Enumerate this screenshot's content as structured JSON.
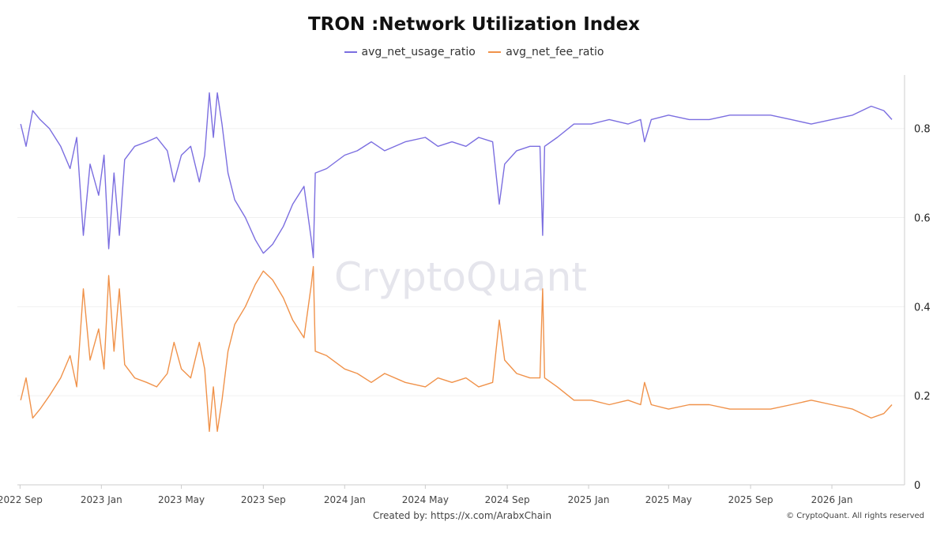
{
  "chart_data": {
    "type": "line",
    "title": "TRON :Network Utilization Index",
    "xlabel": "",
    "ylabel": "",
    "ylim": [
      0,
      0.92
    ],
    "grid": true,
    "legend": "top-center",
    "xlim": [
      "2022-08-28",
      "2026-04-20"
    ],
    "x_tick_labels": [
      {
        "date": "2022-09-01",
        "label": "2022 Sep"
      },
      {
        "date": "2023-01-01",
        "label": "2023 Jan"
      },
      {
        "date": "2023-05-01",
        "label": "2023 May"
      },
      {
        "date": "2023-09-01",
        "label": "2023 Sep"
      },
      {
        "date": "2024-01-01",
        "label": "2024 Jan"
      },
      {
        "date": "2024-05-01",
        "label": "2024 May"
      },
      {
        "date": "2024-09-01",
        "label": "2024 Sep"
      },
      {
        "date": "2025-01-01",
        "label": "2025 Jan"
      },
      {
        "date": "2025-05-01",
        "label": "2025 May"
      },
      {
        "date": "2025-09-01",
        "label": "2025 Sep"
      },
      {
        "date": "2026-01-01",
        "label": "2026 Jan"
      }
    ],
    "y_ticks": [
      0,
      0.2,
      0.4,
      0.6,
      0.8
    ],
    "y_tick_labels": [
      "0",
      "0.2",
      "0.4",
      "0.6",
      "0.8"
    ],
    "series": [
      {
        "name": "avg_net_usage_ratio",
        "color": "#7b6ee0",
        "points": [
          [
            "2022-09-02",
            0.81
          ],
          [
            "2022-09-10",
            0.76
          ],
          [
            "2022-09-20",
            0.84
          ],
          [
            "2022-10-01",
            0.82
          ],
          [
            "2022-10-15",
            0.8
          ],
          [
            "2022-11-01",
            0.76
          ],
          [
            "2022-11-15",
            0.71
          ],
          [
            "2022-11-25",
            0.78
          ],
          [
            "2022-12-05",
            0.56
          ],
          [
            "2022-12-15",
            0.72
          ],
          [
            "2022-12-28",
            0.65
          ],
          [
            "2023-01-05",
            0.74
          ],
          [
            "2023-01-12",
            0.53
          ],
          [
            "2023-01-20",
            0.7
          ],
          [
            "2023-01-28",
            0.56
          ],
          [
            "2023-02-05",
            0.73
          ],
          [
            "2023-02-20",
            0.76
          ],
          [
            "2023-03-10",
            0.77
          ],
          [
            "2023-03-25",
            0.78
          ],
          [
            "2023-04-10",
            0.75
          ],
          [
            "2023-04-20",
            0.68
          ],
          [
            "2023-05-01",
            0.74
          ],
          [
            "2023-05-15",
            0.76
          ],
          [
            "2023-05-28",
            0.68
          ],
          [
            "2023-06-05",
            0.74
          ],
          [
            "2023-06-12",
            0.88
          ],
          [
            "2023-06-18",
            0.78
          ],
          [
            "2023-06-24",
            0.88
          ],
          [
            "2023-07-01",
            0.81
          ],
          [
            "2023-07-10",
            0.7
          ],
          [
            "2023-07-20",
            0.64
          ],
          [
            "2023-08-05",
            0.6
          ],
          [
            "2023-08-20",
            0.55
          ],
          [
            "2023-09-01",
            0.52
          ],
          [
            "2023-09-15",
            0.54
          ],
          [
            "2023-10-01",
            0.58
          ],
          [
            "2023-10-15",
            0.63
          ],
          [
            "2023-11-01",
            0.67
          ],
          [
            "2023-11-12",
            0.55
          ],
          [
            "2023-11-15",
            0.51
          ],
          [
            "2023-11-18",
            0.7
          ],
          [
            "2023-12-05",
            0.71
          ],
          [
            "2024-01-01",
            0.74
          ],
          [
            "2024-01-20",
            0.75
          ],
          [
            "2024-02-10",
            0.77
          ],
          [
            "2024-03-01",
            0.75
          ],
          [
            "2024-04-01",
            0.77
          ],
          [
            "2024-05-01",
            0.78
          ],
          [
            "2024-05-20",
            0.76
          ],
          [
            "2024-06-10",
            0.77
          ],
          [
            "2024-07-01",
            0.76
          ],
          [
            "2024-07-20",
            0.78
          ],
          [
            "2024-08-10",
            0.77
          ],
          [
            "2024-08-20",
            0.63
          ],
          [
            "2024-08-28",
            0.72
          ],
          [
            "2024-09-15",
            0.75
          ],
          [
            "2024-10-05",
            0.76
          ],
          [
            "2024-10-20",
            0.76
          ],
          [
            "2024-10-24",
            0.56
          ],
          [
            "2024-10-27",
            0.76
          ],
          [
            "2024-11-15",
            0.78
          ],
          [
            "2024-12-10",
            0.81
          ],
          [
            "2025-01-05",
            0.81
          ],
          [
            "2025-02-01",
            0.82
          ],
          [
            "2025-03-01",
            0.81
          ],
          [
            "2025-03-20",
            0.82
          ],
          [
            "2025-03-26",
            0.77
          ],
          [
            "2025-04-05",
            0.82
          ],
          [
            "2025-05-01",
            0.83
          ],
          [
            "2025-06-01",
            0.82
          ],
          [
            "2025-07-01",
            0.82
          ],
          [
            "2025-08-01",
            0.83
          ],
          [
            "2025-09-01",
            0.83
          ],
          [
            "2025-10-01",
            0.83
          ],
          [
            "2025-11-01",
            0.82
          ],
          [
            "2025-12-01",
            0.81
          ],
          [
            "2026-01-01",
            0.82
          ],
          [
            "2026-02-01",
            0.83
          ],
          [
            "2026-03-01",
            0.85
          ],
          [
            "2026-03-20",
            0.84
          ],
          [
            "2026-04-01",
            0.82
          ]
        ]
      },
      {
        "name": "avg_net_fee_ratio",
        "color": "#f0924a",
        "points": [
          [
            "2022-09-02",
            0.19
          ],
          [
            "2022-09-10",
            0.24
          ],
          [
            "2022-09-20",
            0.15
          ],
          [
            "2022-10-01",
            0.17
          ],
          [
            "2022-10-15",
            0.2
          ],
          [
            "2022-11-01",
            0.24
          ],
          [
            "2022-11-15",
            0.29
          ],
          [
            "2022-11-25",
            0.22
          ],
          [
            "2022-12-05",
            0.44
          ],
          [
            "2022-12-15",
            0.28
          ],
          [
            "2022-12-28",
            0.35
          ],
          [
            "2023-01-05",
            0.26
          ],
          [
            "2023-01-12",
            0.47
          ],
          [
            "2023-01-20",
            0.3
          ],
          [
            "2023-01-28",
            0.44
          ],
          [
            "2023-02-05",
            0.27
          ],
          [
            "2023-02-20",
            0.24
          ],
          [
            "2023-03-10",
            0.23
          ],
          [
            "2023-03-25",
            0.22
          ],
          [
            "2023-04-10",
            0.25
          ],
          [
            "2023-04-20",
            0.32
          ],
          [
            "2023-05-01",
            0.26
          ],
          [
            "2023-05-15",
            0.24
          ],
          [
            "2023-05-28",
            0.32
          ],
          [
            "2023-06-05",
            0.26
          ],
          [
            "2023-06-12",
            0.12
          ],
          [
            "2023-06-18",
            0.22
          ],
          [
            "2023-06-24",
            0.12
          ],
          [
            "2023-07-01",
            0.19
          ],
          [
            "2023-07-10",
            0.3
          ],
          [
            "2023-07-20",
            0.36
          ],
          [
            "2023-08-05",
            0.4
          ],
          [
            "2023-08-20",
            0.45
          ],
          [
            "2023-09-01",
            0.48
          ],
          [
            "2023-09-15",
            0.46
          ],
          [
            "2023-10-01",
            0.42
          ],
          [
            "2023-10-15",
            0.37
          ],
          [
            "2023-11-01",
            0.33
          ],
          [
            "2023-11-12",
            0.45
          ],
          [
            "2023-11-15",
            0.49
          ],
          [
            "2023-11-18",
            0.3
          ],
          [
            "2023-12-05",
            0.29
          ],
          [
            "2024-01-01",
            0.26
          ],
          [
            "2024-01-20",
            0.25
          ],
          [
            "2024-02-10",
            0.23
          ],
          [
            "2024-03-01",
            0.25
          ],
          [
            "2024-04-01",
            0.23
          ],
          [
            "2024-05-01",
            0.22
          ],
          [
            "2024-05-20",
            0.24
          ],
          [
            "2024-06-10",
            0.23
          ],
          [
            "2024-07-01",
            0.24
          ],
          [
            "2024-07-20",
            0.22
          ],
          [
            "2024-08-10",
            0.23
          ],
          [
            "2024-08-20",
            0.37
          ],
          [
            "2024-08-28",
            0.28
          ],
          [
            "2024-09-15",
            0.25
          ],
          [
            "2024-10-05",
            0.24
          ],
          [
            "2024-10-20",
            0.24
          ],
          [
            "2024-10-24",
            0.44
          ],
          [
            "2024-10-27",
            0.24
          ],
          [
            "2024-11-15",
            0.22
          ],
          [
            "2024-12-10",
            0.19
          ],
          [
            "2025-01-05",
            0.19
          ],
          [
            "2025-02-01",
            0.18
          ],
          [
            "2025-03-01",
            0.19
          ],
          [
            "2025-03-20",
            0.18
          ],
          [
            "2025-03-26",
            0.23
          ],
          [
            "2025-04-05",
            0.18
          ],
          [
            "2025-05-01",
            0.17
          ],
          [
            "2025-06-01",
            0.18
          ],
          [
            "2025-07-01",
            0.18
          ],
          [
            "2025-08-01",
            0.17
          ],
          [
            "2025-09-01",
            0.17
          ],
          [
            "2025-10-01",
            0.17
          ],
          [
            "2025-11-01",
            0.18
          ],
          [
            "2025-12-01",
            0.19
          ],
          [
            "2026-01-01",
            0.18
          ],
          [
            "2026-02-01",
            0.17
          ],
          [
            "2026-03-01",
            0.15
          ],
          [
            "2026-03-20",
            0.16
          ],
          [
            "2026-04-01",
            0.18
          ]
        ]
      }
    ]
  },
  "watermark": "CryptoQuant",
  "footer": {
    "created_by_label": "Created by:",
    "created_by_link": "https://x.com/ArabxChain",
    "copyright": "© CryptoQuant. All rights reserved"
  }
}
